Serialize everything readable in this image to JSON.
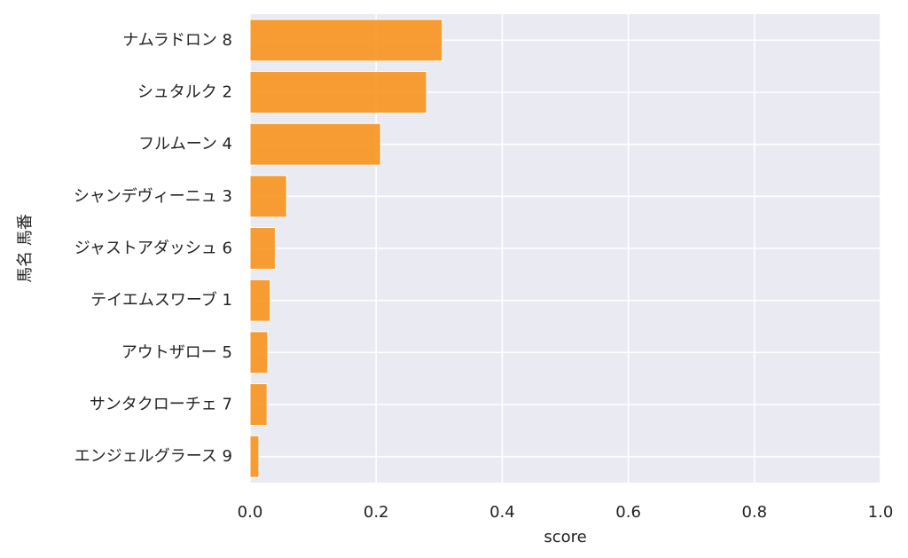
{
  "chart_data": {
    "type": "bar",
    "orientation": "horizontal",
    "title": "",
    "xlabel": "score",
    "ylabel": "馬名 馬番",
    "categories": [
      "ナムラドロン 8",
      "シュタルク 2",
      "フルムーン 4",
      "シャンデヴィーニュ 3",
      "ジャストアダッシュ 6",
      "テイエムスワーブ 1",
      "アウトザロー 5",
      "サンタクローチェ 7",
      "エンジェルグラース 9"
    ],
    "values": [
      0.305,
      0.28,
      0.207,
      0.058,
      0.04,
      0.032,
      0.028,
      0.027,
      0.014
    ],
    "xlim": [
      0.0,
      1.0
    ],
    "xticks": [
      "0.0",
      "0.2",
      "0.4",
      "0.6",
      "0.8",
      "1.0"
    ],
    "grid": true,
    "legend": "none",
    "colors": {
      "bar": "#f7931e",
      "bar_edge": "#ffffff",
      "plot_background": "#eaeaf2",
      "grid": "#ffffff",
      "text": "#222222"
    }
  }
}
